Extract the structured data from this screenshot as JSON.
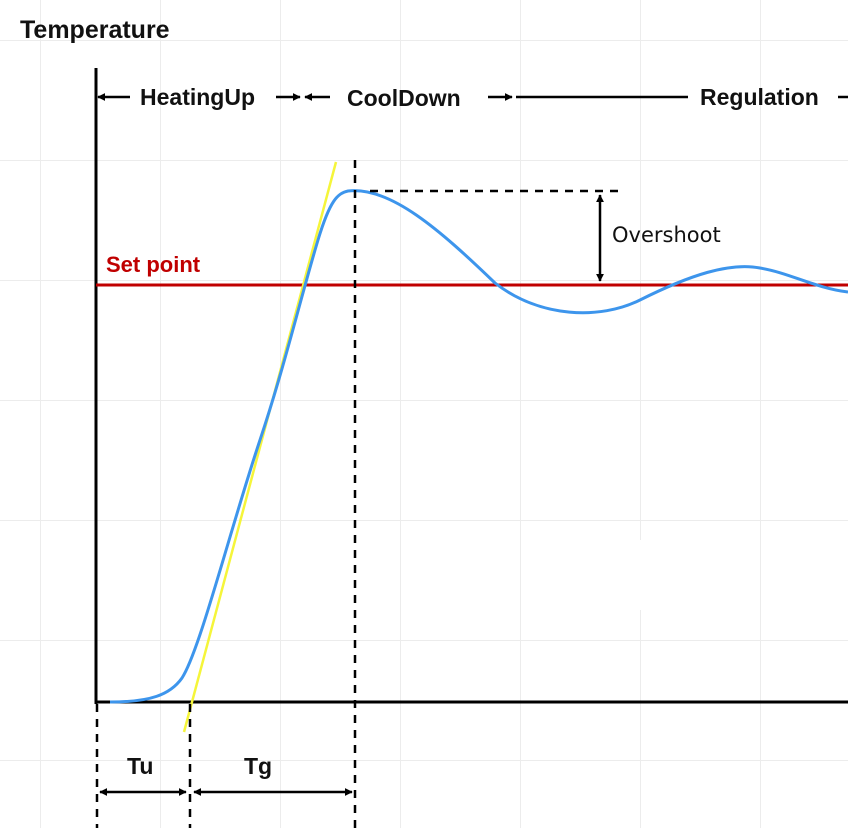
{
  "y_axis_title": "Temperature",
  "phases": {
    "heating": "HeatingUp",
    "cooldown": "CoolDown",
    "regulation": "Regulation"
  },
  "setpoint_label": "Set point",
  "overshoot_label": "Overshoot",
  "tu_label": "Tu",
  "tg_label": "Tg",
  "colors": {
    "response_curve": "#3d95ec",
    "tangent_line": "#f5f53a",
    "setpoint_line": "#c00000",
    "setpoint_text": "#c00000",
    "axes": "#000000",
    "grid": "#ececec"
  }
}
